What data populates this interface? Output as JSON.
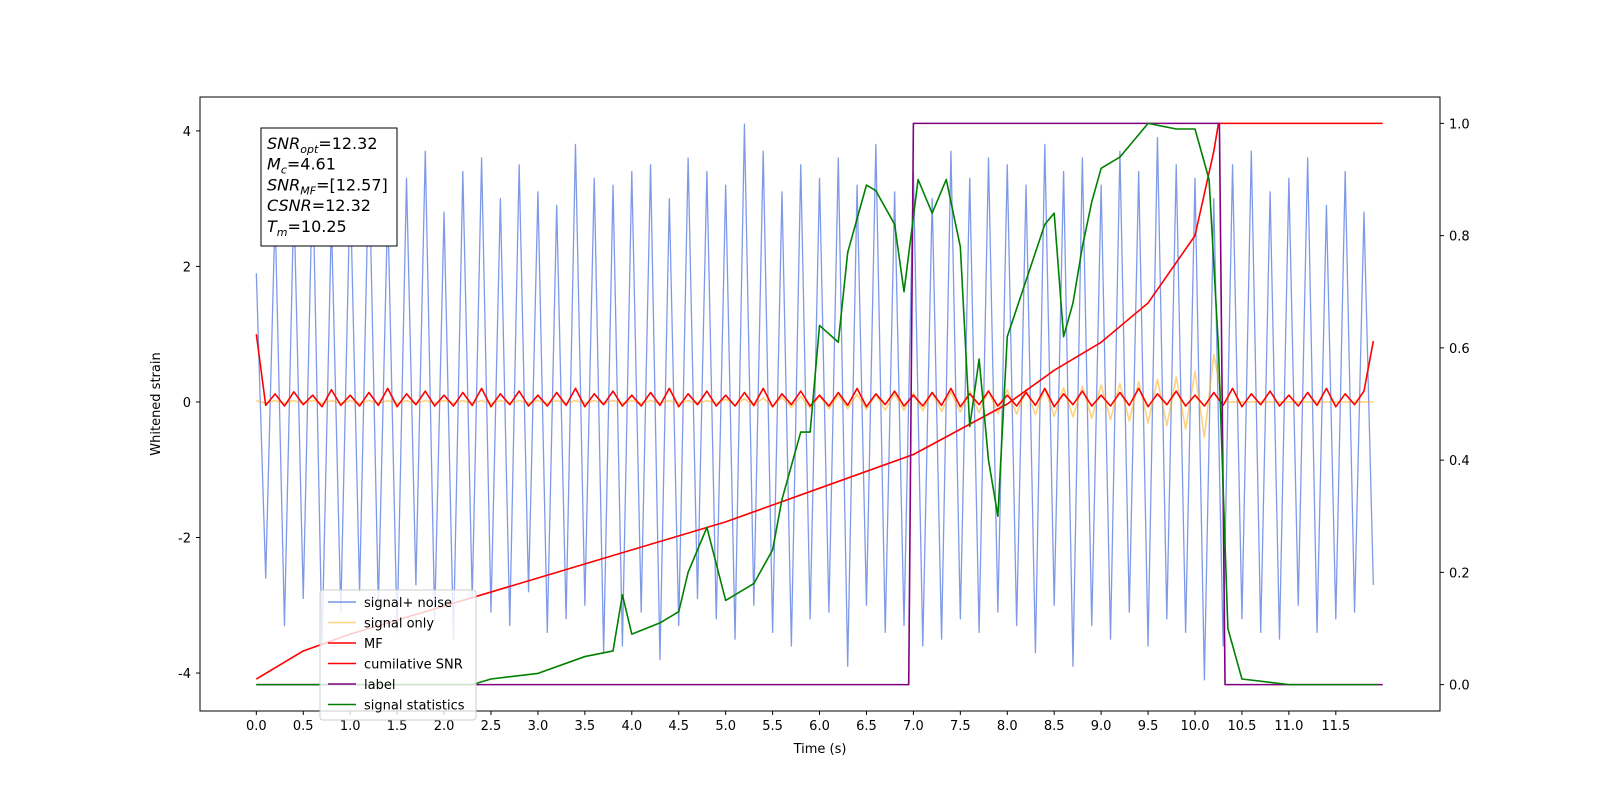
{
  "chart_data": {
    "type": "line",
    "xlabel": "Time (s)",
    "ylabel": "Whitened strain",
    "xlim": [
      -0.6,
      12.61
    ],
    "ylim": [
      -4.56,
      4.5
    ],
    "y2lim": [
      -0.047,
      1.047
    ],
    "xticks": [
      {
        "value": 0,
        "label": "0.0"
      },
      {
        "value": 0.5,
        "label": "0.5"
      },
      {
        "value": 1,
        "label": "1.0"
      },
      {
        "value": 1.5,
        "label": "1.5"
      },
      {
        "value": 2,
        "label": "2.0"
      },
      {
        "value": 2.5,
        "label": "2.5"
      },
      {
        "value": 3,
        "label": "3.0"
      },
      {
        "value": 3.5,
        "label": "3.5"
      },
      {
        "value": 4,
        "label": "4.0"
      },
      {
        "value": 4.5,
        "label": "4.5"
      },
      {
        "value": 5,
        "label": "5.0"
      },
      {
        "value": 5.5,
        "label": "5.5"
      },
      {
        "value": 6,
        "label": "6.0"
      },
      {
        "value": 6.5,
        "label": "6.5"
      },
      {
        "value": 7,
        "label": "7.0"
      },
      {
        "value": 7.5,
        "label": "7.5"
      },
      {
        "value": 8,
        "label": "8.0"
      },
      {
        "value": 8.5,
        "label": "8.5"
      },
      {
        "value": 9,
        "label": "9.0"
      },
      {
        "value": 9.5,
        "label": "9.5"
      },
      {
        "value": 10,
        "label": "10.0"
      },
      {
        "value": 10.5,
        "label": "10.5"
      },
      {
        "value": 11,
        "label": "11.0"
      },
      {
        "value": 11.5,
        "label": "11.5"
      }
    ],
    "yticks": [
      -4,
      -2,
      0,
      2,
      4
    ],
    "y2ticks": [
      {
        "value": 0,
        "label": "0.0"
      },
      {
        "value": 0.2,
        "label": "0.2"
      },
      {
        "value": 0.4,
        "label": "0.4"
      },
      {
        "value": 0.6,
        "label": "0.6"
      },
      {
        "value": 0.8,
        "label": "0.8"
      },
      {
        "value": 1,
        "label": "1.0"
      }
    ],
    "grid": false,
    "legend": "lower left",
    "annotation_box": [
      {
        "symbol": "SNR",
        "subscript": "opt",
        "text": "=12.32"
      },
      {
        "symbol": "M",
        "subscript": "c",
        "text": "=4.61"
      },
      {
        "symbol": "SNR",
        "subscript": "MF",
        "text": "=[12.57]"
      },
      {
        "symbol": "CSNR",
        "text": "=12.32"
      },
      {
        "symbol": "T",
        "subscript": "m",
        "text": "=10.25"
      }
    ],
    "x": [
      0,
      0.1,
      0.2,
      0.3,
      0.4,
      0.5,
      0.6,
      0.7,
      0.8,
      0.9,
      1,
      1.1,
      1.2,
      1.3,
      1.4,
      1.5,
      1.6,
      1.7,
      1.8,
      1.9,
      2,
      2.1,
      2.2,
      2.3,
      2.4,
      2.5,
      2.6,
      2.7,
      2.8,
      2.9,
      3,
      3.1,
      3.2,
      3.3,
      3.4,
      3.5,
      3.6,
      3.7,
      3.8,
      3.9,
      4,
      4.1,
      4.2,
      4.3,
      4.4,
      4.5,
      4.6,
      4.7,
      4.8,
      4.9,
      5,
      5.1,
      5.2,
      5.3,
      5.4,
      5.5,
      5.6,
      5.7,
      5.8,
      5.9,
      6,
      6.1,
      6.2,
      6.3,
      6.4,
      6.5,
      6.6,
      6.7,
      6.8,
      6.9,
      7,
      7.1,
      7.2,
      7.3,
      7.4,
      7.5,
      7.6,
      7.7,
      7.8,
      7.9,
      8,
      8.1,
      8.2,
      8.3,
      8.4,
      8.5,
      8.6,
      8.7,
      8.8,
      8.9,
      9,
      9.1,
      9.2,
      9.3,
      9.4,
      9.5,
      9.6,
      9.7,
      9.8,
      9.9,
      10,
      10.1,
      10.2,
      10.3,
      10.4,
      10.5,
      10.6,
      10.7,
      10.8,
      10.9,
      11,
      11.1,
      11.2,
      11.3,
      11.4,
      11.5,
      11.6,
      11.7,
      11.8,
      11.9
    ],
    "series": [
      {
        "name": "signal+ noise",
        "color": "#7893e8",
        "values": [
          1.9,
          -2.6,
          2.8,
          -3.3,
          3.0,
          -2.9,
          3.4,
          -3.6,
          2.7,
          -3.1,
          3.2,
          -2.8,
          3.6,
          -3.0,
          2.9,
          -3.4,
          3.3,
          -2.7,
          3.7,
          -3.2,
          2.8,
          -3.5,
          3.4,
          -2.9,
          3.6,
          -3.1,
          3.0,
          -3.3,
          3.5,
          -2.8,
          3.1,
          -3.4,
          2.9,
          -3.2,
          3.8,
          -3.0,
          3.3,
          -3.7,
          3.2,
          -3.6,
          3.4,
          -3.1,
          3.5,
          -3.8,
          3.0,
          -3.3,
          3.6,
          -2.9,
          3.4,
          -3.2,
          3.2,
          -3.5,
          4.1,
          -3.0,
          3.7,
          -3.4,
          3.1,
          -3.6,
          3.5,
          -3.2,
          3.3,
          -3.1,
          3.6,
          -3.9,
          3.2,
          -3.0,
          3.8,
          -3.4,
          3.1,
          -3.3,
          3.4,
          -3.6,
          3.0,
          -3.5,
          3.7,
          -3.2,
          3.3,
          -3.4,
          3.6,
          -3.1,
          3.5,
          -3.3,
          3.2,
          -3.7,
          3.8,
          -3.0,
          3.4,
          -3.9,
          3.6,
          -3.3,
          3.2,
          -3.5,
          3.7,
          -3.1,
          3.4,
          -3.6,
          3.9,
          -3.2,
          3.5,
          -3.4,
          3.3,
          -4.1,
          3.0,
          -3.6,
          3.5,
          -3.2,
          3.7,
          -3.4,
          3.1,
          -3.5,
          3.3,
          -3.0,
          3.6,
          -3.4,
          2.9,
          -3.2,
          3.4,
          -3.1,
          2.8,
          -2.7
        ]
      },
      {
        "name": "signal only",
        "color": "#ffa500",
        "values": [
          0.02,
          -0.02,
          0.02,
          -0.02,
          0.02,
          -0.02,
          0.02,
          -0.02,
          0.02,
          -0.02,
          0.02,
          -0.02,
          0.02,
          -0.02,
          0.02,
          -0.02,
          0.02,
          -0.02,
          0.02,
          -0.02,
          0.02,
          -0.02,
          0.02,
          -0.02,
          0.02,
          -0.02,
          0.02,
          -0.02,
          0.02,
          -0.02,
          0.02,
          -0.02,
          0.02,
          -0.02,
          0.02,
          -0.02,
          0.02,
          -0.02,
          0.02,
          -0.02,
          0.02,
          -0.02,
          0.02,
          -0.02,
          0.02,
          -0.02,
          0.02,
          -0.02,
          0.02,
          -0.02,
          0.04,
          -0.05,
          0.05,
          -0.06,
          0.06,
          -0.07,
          0.07,
          -0.08,
          0.08,
          -0.09,
          0.09,
          -0.1,
          0.1,
          -0.1,
          0.11,
          -0.11,
          0.11,
          -0.12,
          0.12,
          -0.12,
          0.13,
          -0.13,
          0.14,
          -0.14,
          0.15,
          -0.15,
          0.16,
          -0.16,
          0.17,
          -0.17,
          0.18,
          -0.18,
          0.19,
          -0.19,
          0.2,
          -0.21,
          0.21,
          -0.22,
          0.23,
          -0.24,
          0.25,
          -0.26,
          0.27,
          -0.28,
          0.3,
          -0.31,
          0.33,
          -0.35,
          0.37,
          -0.4,
          0.45,
          -0.52,
          0.7,
          0,
          0,
          0,
          0,
          0,
          0,
          0,
          0,
          0,
          0,
          0,
          0,
          0,
          0,
          0,
          0,
          0
        ]
      },
      {
        "name": "MF",
        "color": "#ff0000",
        "values": [
          1.0,
          -0.05,
          0.12,
          -0.06,
          0.15,
          -0.04,
          0.1,
          -0.07,
          0.18,
          -0.05,
          0.1,
          -0.06,
          0.14,
          -0.05,
          0.2,
          -0.07,
          0.12,
          -0.04,
          0.16,
          -0.06,
          0.1,
          -0.06,
          0.14,
          -0.05,
          0.2,
          -0.07,
          0.12,
          -0.04,
          0.16,
          -0.06,
          0.1,
          -0.06,
          0.14,
          -0.05,
          0.2,
          -0.07,
          0.12,
          -0.04,
          0.16,
          -0.06,
          0.1,
          -0.06,
          0.14,
          -0.05,
          0.2,
          -0.07,
          0.12,
          -0.04,
          0.16,
          -0.06,
          0.1,
          -0.06,
          0.14,
          -0.05,
          0.2,
          -0.07,
          0.12,
          -0.04,
          0.16,
          -0.06,
          0.1,
          -0.06,
          0.14,
          -0.05,
          0.2,
          -0.07,
          0.12,
          -0.04,
          0.16,
          -0.06,
          0.1,
          -0.06,
          0.14,
          -0.05,
          0.2,
          -0.07,
          0.12,
          -0.04,
          0.16,
          -0.06,
          0.1,
          -0.06,
          0.14,
          -0.05,
          0.2,
          -0.07,
          0.12,
          -0.04,
          0.16,
          -0.06,
          0.1,
          -0.06,
          0.14,
          -0.05,
          0.2,
          -0.07,
          0.12,
          -0.04,
          0.16,
          -0.06,
          0.1,
          -0.06,
          0.14,
          -0.05,
          0.2,
          -0.07,
          0.12,
          -0.04,
          0.16,
          -0.06,
          0.1,
          -0.06,
          0.14,
          -0.05,
          0.2,
          -0.07,
          0.12,
          -0.04,
          0.16,
          0.9
        ]
      },
      {
        "name": "cumilative SNR",
        "color": "#ff0000",
        "axis": "y2",
        "x": [
          0,
          0.5,
          1,
          2,
          3,
          4,
          5,
          6,
          7,
          8,
          8.5,
          9,
          9.5,
          10,
          10.2,
          10.25,
          12
        ],
        "values": [
          0.01,
          0.06,
          0.09,
          0.14,
          0.19,
          0.24,
          0.29,
          0.35,
          0.41,
          0.5,
          0.56,
          0.61,
          0.68,
          0.8,
          0.95,
          1.0,
          1.0
        ]
      },
      {
        "name": "label",
        "color": "#800080",
        "axis": "y2",
        "x": [
          0,
          6.95,
          7.0,
          10.26,
          10.32,
          12
        ],
        "values": [
          0,
          0,
          1,
          1,
          0,
          0
        ]
      },
      {
        "name": "signal statistics",
        "color": "#008000",
        "axis": "y2",
        "x": [
          0,
          2.3,
          2.5,
          3,
          3.5,
          3.8,
          3.9,
          4.0,
          4.3,
          4.5,
          4.6,
          4.8,
          5.0,
          5.3,
          5.5,
          5.6,
          5.8,
          5.9,
          6.0,
          6.2,
          6.3,
          6.5,
          6.6,
          6.8,
          6.9,
          7.05,
          7.2,
          7.35,
          7.5,
          7.6,
          7.7,
          7.8,
          7.9,
          8.0,
          8.2,
          8.4,
          8.5,
          8.6,
          8.7,
          8.8,
          8.9,
          9.0,
          9.2,
          9.3,
          9.5,
          9.8,
          10.0,
          10.15,
          10.25,
          10.35,
          10.5,
          11.0,
          11.95
        ],
        "values": [
          0,
          0,
          0.01,
          0.02,
          0.05,
          0.06,
          0.16,
          0.09,
          0.11,
          0.13,
          0.2,
          0.28,
          0.15,
          0.18,
          0.24,
          0.33,
          0.45,
          0.45,
          0.64,
          0.61,
          0.77,
          0.89,
          0.88,
          0.82,
          0.7,
          0.9,
          0.84,
          0.9,
          0.78,
          0.46,
          0.58,
          0.4,
          0.3,
          0.62,
          0.72,
          0.82,
          0.84,
          0.62,
          0.68,
          0.78,
          0.86,
          0.92,
          0.94,
          0.96,
          1.0,
          0.99,
          0.99,
          0.9,
          0.6,
          0.1,
          0.01,
          0,
          0
        ]
      }
    ]
  }
}
